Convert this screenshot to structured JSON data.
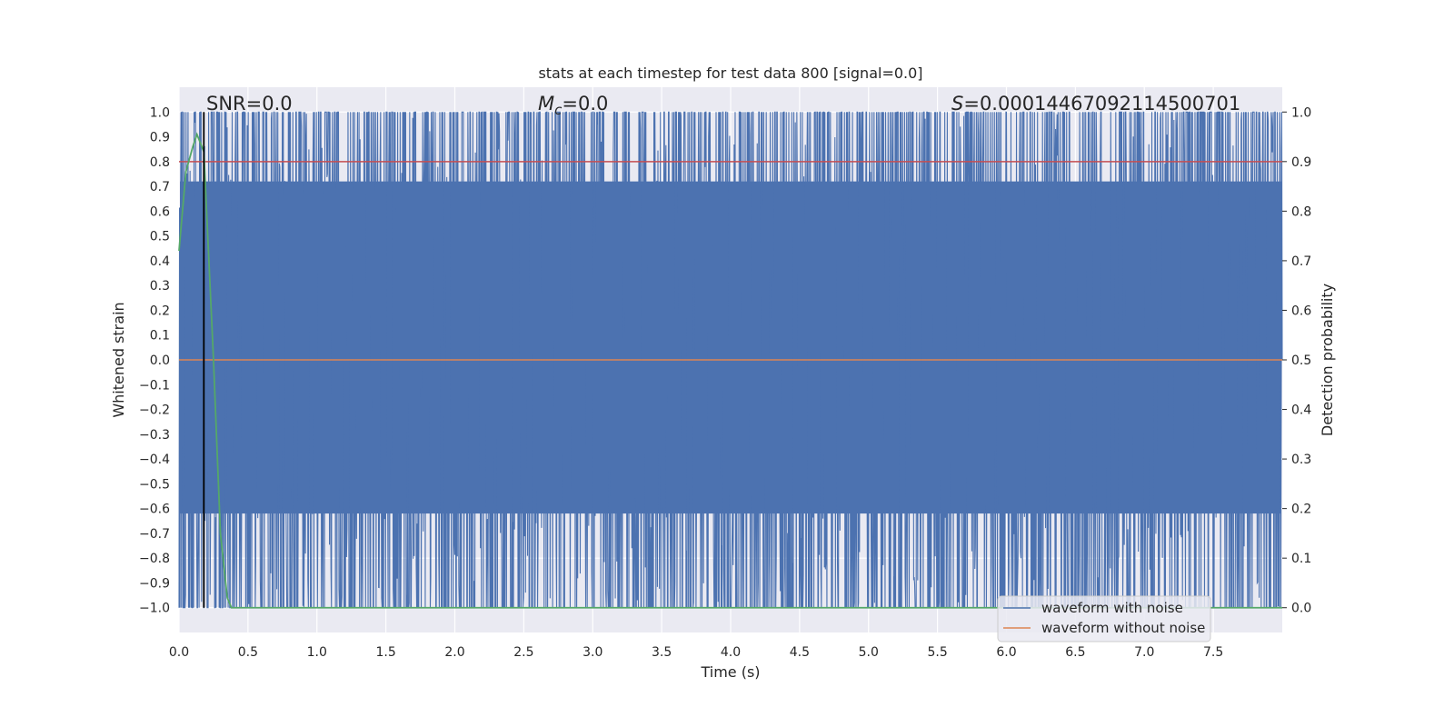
{
  "chart_data": {
    "type": "line",
    "title": "stats at each timestep for test data 800 [signal=0.0]",
    "xlabel": "Time (s)",
    "ylabel_left": "Whitened strain",
    "ylabel_right": "Detection probability",
    "xlim": [
      0,
      8
    ],
    "ylim_left": [
      -1.1,
      1.1
    ],
    "ylim_right": [
      -0.05,
      1.05
    ],
    "x_ticks": [
      "0.0",
      "0.5",
      "1.0",
      "1.5",
      "2.0",
      "2.5",
      "3.0",
      "3.5",
      "4.0",
      "4.5",
      "5.0",
      "5.5",
      "6.0",
      "6.5",
      "7.0",
      "7.5"
    ],
    "y_left_ticks": [
      "1.0",
      "0.9",
      "0.8",
      "0.7",
      "0.6",
      "0.5",
      "0.4",
      "0.3",
      "0.2",
      "0.1",
      "0.0",
      "−0.1",
      "−0.2",
      "−0.3",
      "−0.4",
      "−0.5",
      "−0.6",
      "−0.7",
      "−0.8",
      "−0.9",
      "−1.0"
    ],
    "y_right_ticks": [
      "1.0",
      "0.9",
      "0.8",
      "0.7",
      "0.6",
      "0.5",
      "0.4",
      "0.3",
      "0.2",
      "0.1",
      "0.0"
    ],
    "annotations": {
      "snr": "SNR=0.0",
      "mc_symbol": "M",
      "mc_subscript": "c",
      "mc_value": "=0.0",
      "s_symbol": "S",
      "s_value": "=0.00014467092114500701"
    },
    "grid": true,
    "legend_placement": "lower-right",
    "series": [
      {
        "name": "waveform with noise",
        "color": "#4c72b0",
        "description_values": {
          "min": -1.0,
          "max": 1.0
        }
      },
      {
        "name": "waveform without noise",
        "color": "#dd8452",
        "values_constant": 0.0
      },
      {
        "color": "#55a868",
        "axis": "right",
        "x": [
          0.0,
          0.05,
          0.1,
          0.13,
          0.18,
          0.25,
          0.3,
          0.35,
          0.38,
          0.5,
          1.0,
          2.0,
          3.0,
          4.0,
          5.0,
          6.0,
          7.0,
          8.0
        ],
        "values": [
          0.72,
          0.88,
          0.93,
          0.955,
          0.92,
          0.5,
          0.15,
          0.02,
          0.0,
          0.0,
          0.0,
          0.0,
          0.0,
          0.0,
          0.0,
          0.0,
          0.0,
          0.0
        ]
      },
      {
        "color": "#c44e52",
        "axis": "right",
        "values_constant": 0.9
      }
    ],
    "vertical_line": {
      "x": 0.18,
      "color": "#000000"
    }
  }
}
